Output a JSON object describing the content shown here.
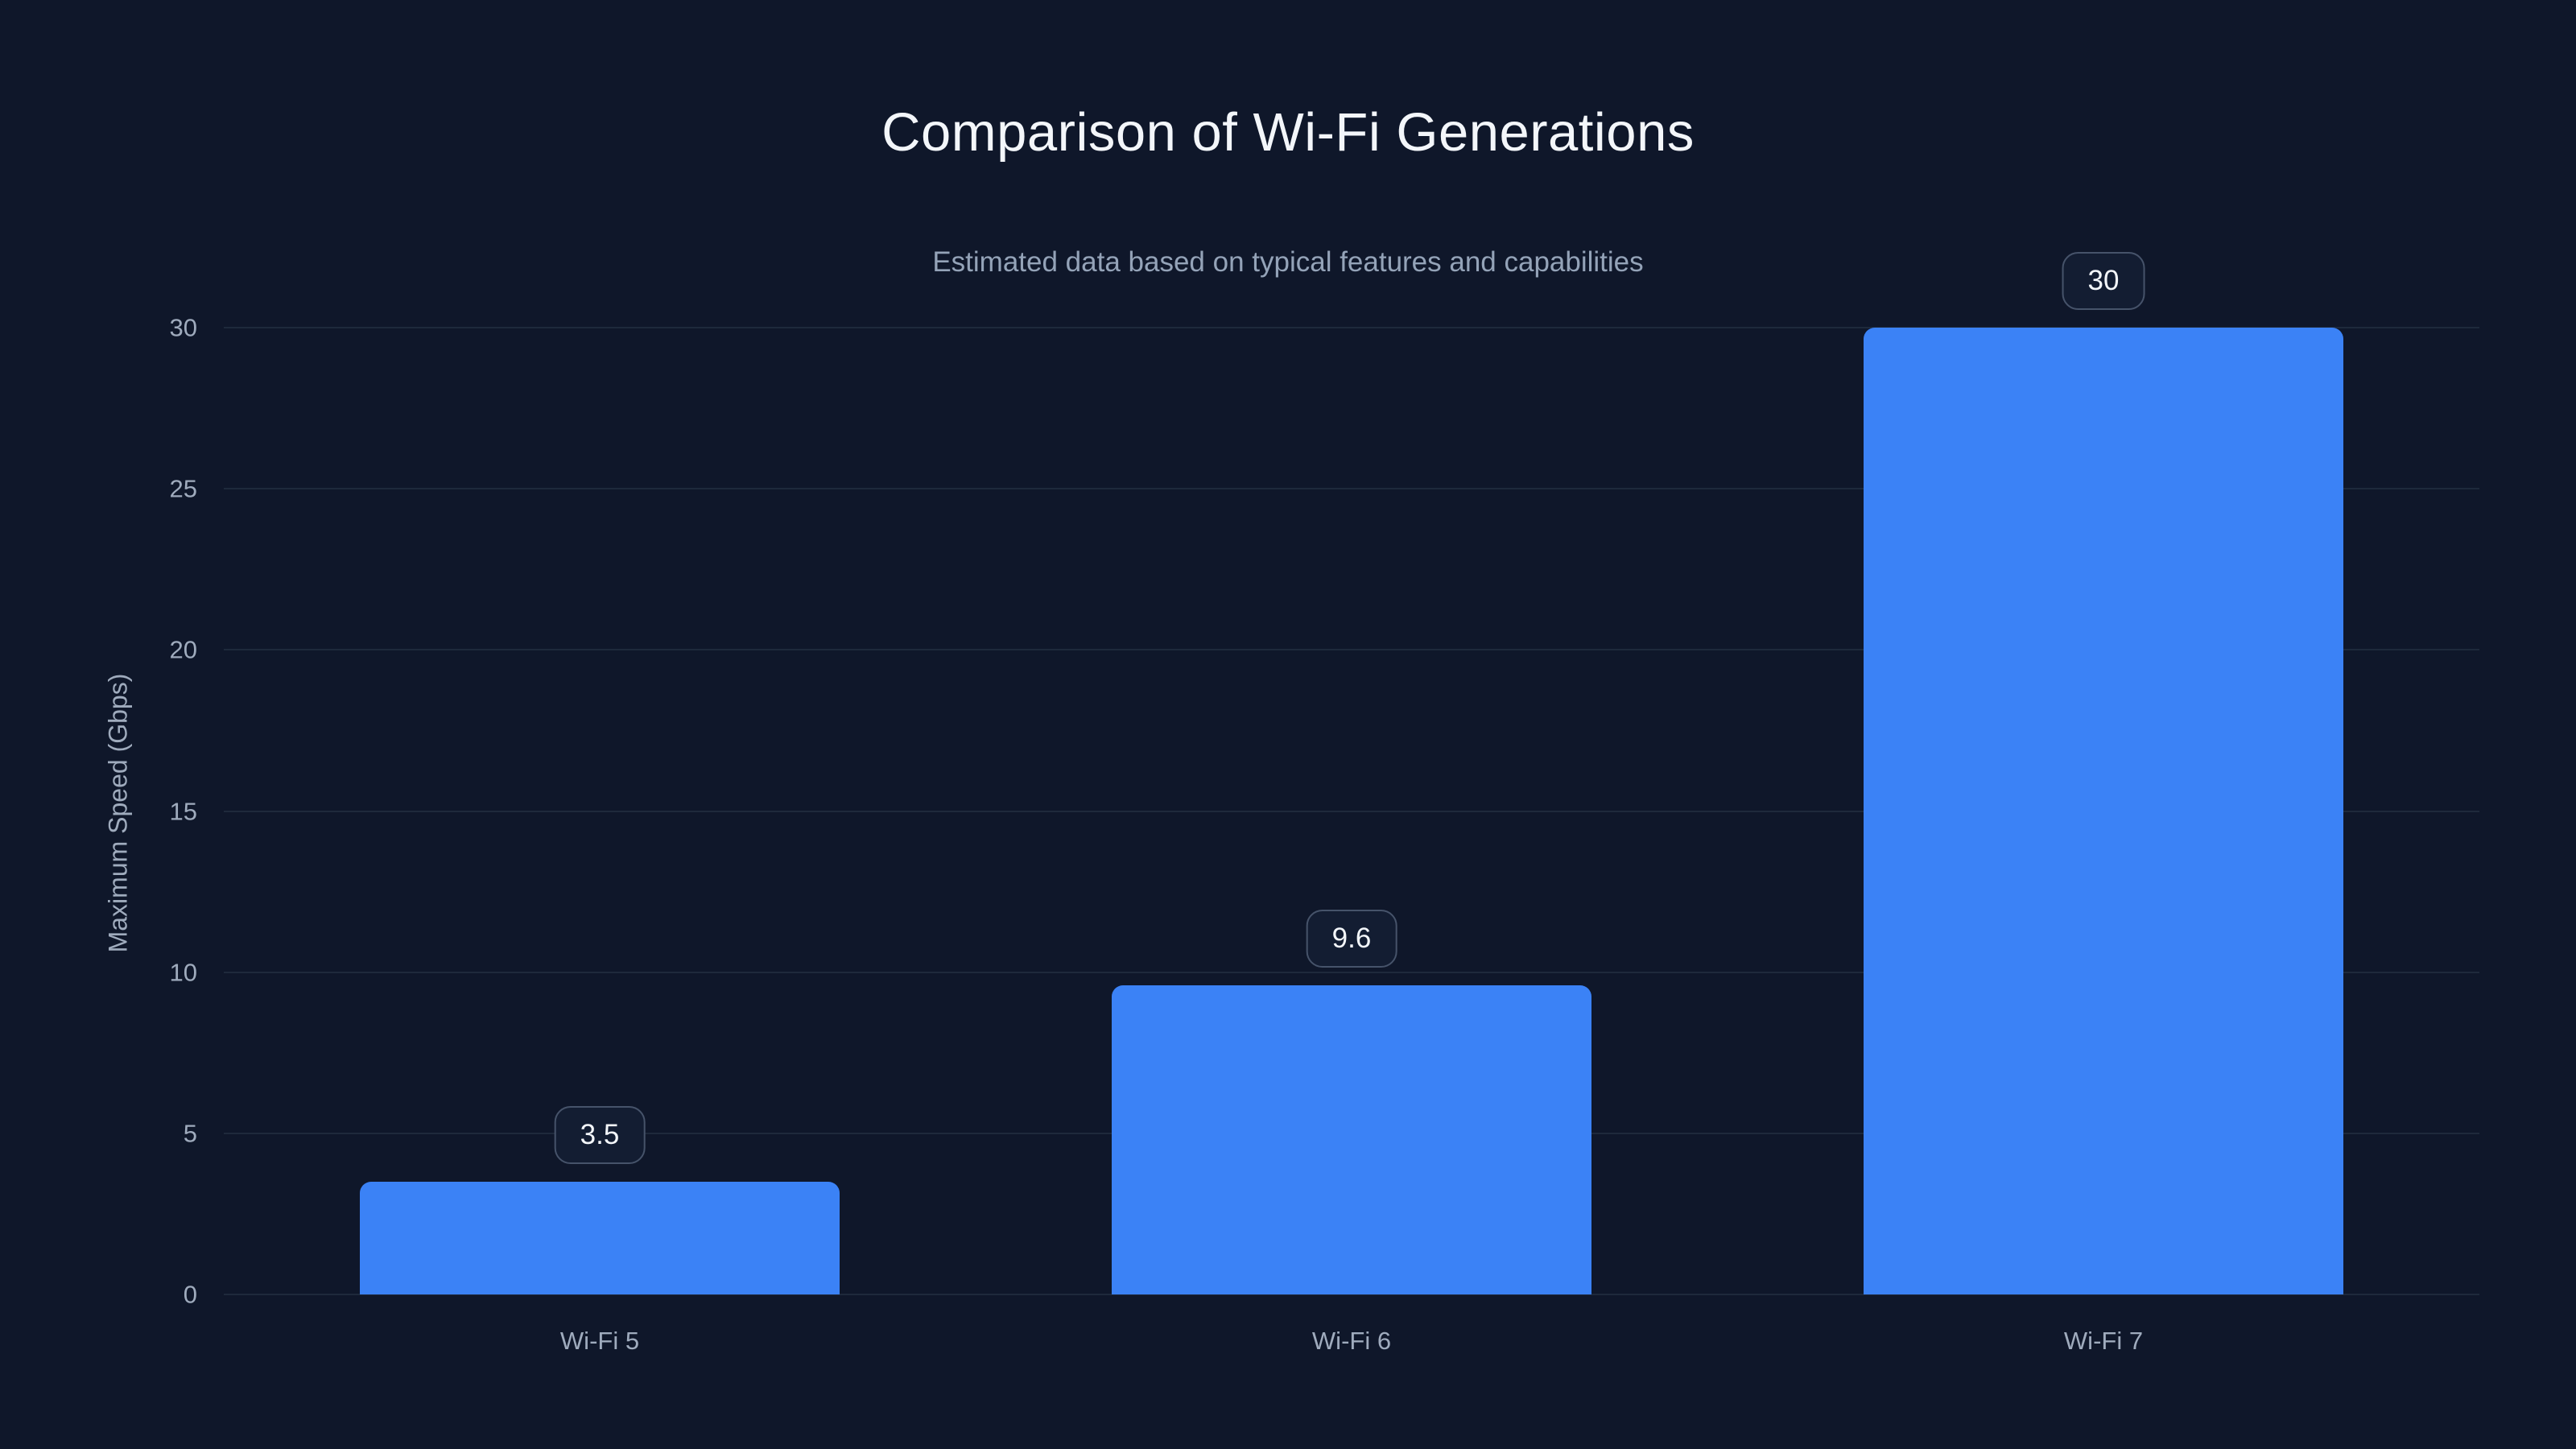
{
  "colors": {
    "bg": "#0f172a",
    "title": "#f3f6fa",
    "subtitle": "#94a3b8",
    "axis": "#9fabbd",
    "grid": "#1e293b",
    "bar": "#3b82f6",
    "badge_bg": "#131d32",
    "badge_border": "#46536a",
    "badge_text": "#f3f6fa"
  },
  "chart_data": {
    "type": "bar",
    "title": "Comparison of Wi-Fi Generations",
    "subtitle": "Estimated data based on typical features and capabilities",
    "categories": [
      "Wi-Fi 5",
      "Wi-Fi 6",
      "Wi-Fi 7"
    ],
    "values": [
      3.5,
      9.6,
      30
    ],
    "xlabel": "",
    "ylabel": "Maximum Speed (Gbps)",
    "ylim": [
      0,
      30
    ],
    "yticks": [
      0,
      5,
      10,
      15,
      20,
      25,
      30
    ],
    "grid": true,
    "legend": false,
    "bar_color": "#3b82f6",
    "value_badges": true
  }
}
